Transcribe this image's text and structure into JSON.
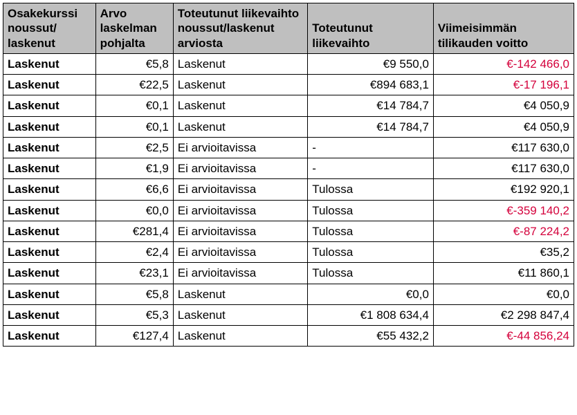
{
  "table": {
    "columns": [
      "Osakekurssi noussut/ laskenut",
      "Arvo laskelman pohjalta",
      "Toteutunut liikevaihto noussut/laskenut arviosta",
      "Toteutunut liikevaihto",
      "Viimeisimmän tilikauden voitto"
    ],
    "currency_symbol": "€",
    "negative_color": "#d4003b",
    "header_bg": "#bfbfbf",
    "rows": [
      {
        "status": "Laskenut",
        "value": "€5,8",
        "change": "Laskenut",
        "revenue": "€9 550,0",
        "revenue_align": "right",
        "profit": "€-142 466,0",
        "profit_negative": true
      },
      {
        "status": "Laskenut",
        "value": "€22,5",
        "change": "Laskenut",
        "revenue": "€894 683,1",
        "revenue_align": "right",
        "profit": "€-17 196,1",
        "profit_negative": true
      },
      {
        "status": "Laskenut",
        "value": "€0,1",
        "change": "Laskenut",
        "revenue": "€14 784,7",
        "revenue_align": "right",
        "profit": "€4 050,9",
        "profit_negative": false
      },
      {
        "status": "Laskenut",
        "value": "€0,1",
        "change": "Laskenut",
        "revenue": "€14 784,7",
        "revenue_align": "right",
        "profit": "€4 050,9",
        "profit_negative": false
      },
      {
        "status": "Laskenut",
        "value": "€2,5",
        "change": "Ei arvioitavissa",
        "revenue": "-",
        "revenue_align": "left",
        "profit": "€117 630,0",
        "profit_negative": false
      },
      {
        "status": "Laskenut",
        "value": "€1,9",
        "change": "Ei arvioitavissa",
        "revenue": "-",
        "revenue_align": "left",
        "profit": "€117 630,0",
        "profit_negative": false
      },
      {
        "status": "Laskenut",
        "value": "€6,6",
        "change": "Ei arvioitavissa",
        "revenue": "Tulossa",
        "revenue_align": "left",
        "profit": "€192 920,1",
        "profit_negative": false
      },
      {
        "status": "Laskenut",
        "value": "€0,0",
        "change": "Ei arvioitavissa",
        "revenue": "Tulossa",
        "revenue_align": "left",
        "profit": "€-359 140,2",
        "profit_negative": true
      },
      {
        "status": "Laskenut",
        "value": "€281,4",
        "change": "Ei arvioitavissa",
        "revenue": "Tulossa",
        "revenue_align": "left",
        "profit": "€-87 224,2",
        "profit_negative": true
      },
      {
        "status": "Laskenut",
        "value": "€2,4",
        "change": "Ei arvioitavissa",
        "revenue": "Tulossa",
        "revenue_align": "left",
        "profit": "€35,2",
        "profit_negative": false
      },
      {
        "status": "Laskenut",
        "value": "€23,1",
        "change": "Ei arvioitavissa",
        "revenue": "Tulossa",
        "revenue_align": "left",
        "profit": "€11 860,1",
        "profit_negative": false
      },
      {
        "status": "Laskenut",
        "value": "€5,8",
        "change": "Laskenut",
        "revenue": "€0,0",
        "revenue_align": "right",
        "profit": "€0,0",
        "profit_negative": false
      },
      {
        "status": "Laskenut",
        "value": "€5,3",
        "change": "Laskenut",
        "revenue": "€1 808 634,4",
        "revenue_align": "right",
        "profit": "€2 298 847,4",
        "profit_negative": false
      },
      {
        "status": "Laskenut",
        "value": "€127,4",
        "change": "Laskenut",
        "revenue": "€55 432,2",
        "revenue_align": "right",
        "profit": "€-44 856,24",
        "profit_negative": true
      }
    ]
  }
}
